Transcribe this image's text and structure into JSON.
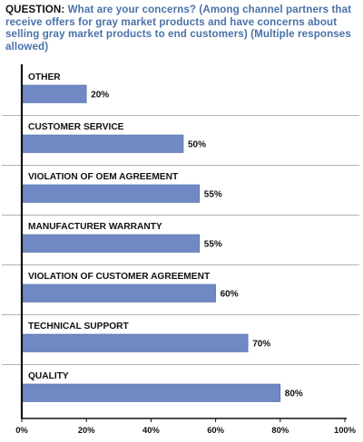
{
  "question": {
    "prefix": "QUESTION:",
    "text": "What are your concerns? (Among channel partners that receive offers for gray market products and have concerns about selling gray market products to end customers) (Multiple responses allowed)"
  },
  "colors": {
    "bar": "#7089c4",
    "bar_stroke": "#4d6aa8",
    "question": "#4a72a8",
    "axis": "#111111",
    "separator": "#b3b3b3"
  },
  "chart_data": {
    "type": "bar",
    "orientation": "horizontal",
    "categories": [
      "OTHER",
      "CUSTOMER SERVICE",
      "VIOLATION OF OEM AGREEMENT",
      "MANUFACTURER WARRANTY",
      "VIOLATION OF CUSTOMER AGREEMENT",
      "TECHNICAL SUPPORT",
      "QUALITY"
    ],
    "values": [
      20,
      50,
      55,
      55,
      60,
      70,
      80
    ],
    "value_labels": [
      "20%",
      "50%",
      "55%",
      "55%",
      "60%",
      "70%",
      "80%"
    ],
    "xlim": [
      0,
      100
    ],
    "xticks": [
      0,
      20,
      40,
      60,
      80,
      100
    ],
    "xtick_labels": [
      "0%",
      "20%",
      "40%",
      "60%",
      "80%",
      "100%"
    ],
    "grid": false
  }
}
